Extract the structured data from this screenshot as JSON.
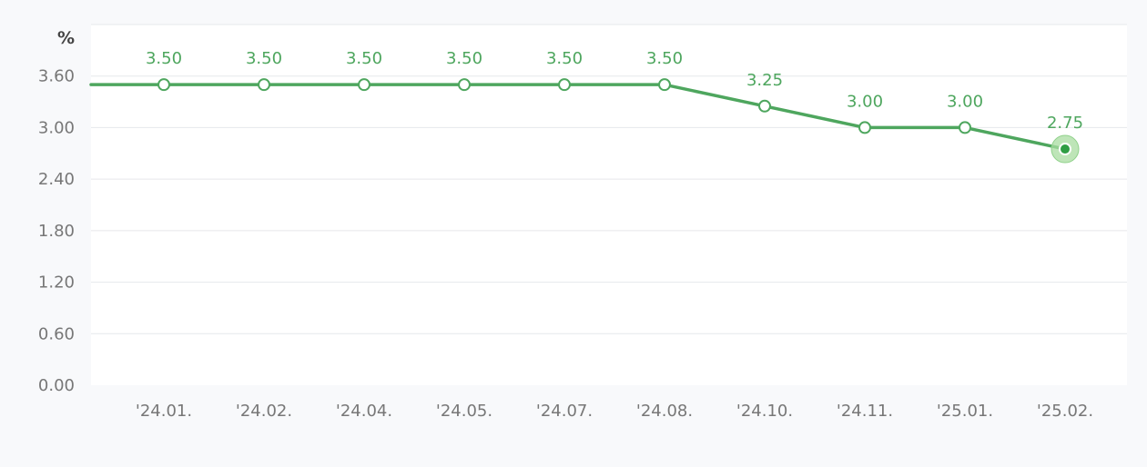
{
  "chart_data": {
    "type": "line",
    "title": "",
    "xlabel": "",
    "ylabel": "%",
    "categories": [
      "'24.01.",
      "'24.02.",
      "'24.04.",
      "'24.05.",
      "'24.07.",
      "'24.08.",
      "'24.10.",
      "'24.11.",
      "'25.01.",
      "'25.02."
    ],
    "series": [
      {
        "values": [
          3.5,
          3.5,
          3.5,
          3.5,
          3.5,
          3.5,
          3.25,
          3.0,
          3.0,
          2.75
        ],
        "labels": [
          "3.50",
          "3.50",
          "3.50",
          "3.50",
          "3.50",
          "3.50",
          "3.25",
          "3.00",
          "3.00",
          "2.75"
        ]
      }
    ],
    "y_ticks": [
      "0.00",
      "0.60",
      "1.20",
      "1.80",
      "2.40",
      "3.00",
      "3.60"
    ],
    "y_tick_values": [
      0,
      0.6,
      1.2,
      1.8,
      2.4,
      3.0,
      3.6
    ],
    "ylim": [
      0,
      4.2
    ],
    "grid": true,
    "line_extends_left": true,
    "highlight_last_point": true
  },
  "colors": {
    "line": "#4ea65e",
    "label": "#4ea65e",
    "grid": "#e6e8eb",
    "plot_bg": "#ffffff",
    "page_bg": "#f8f9fb",
    "highlight_halo": "#a8dca0",
    "highlight_dot": "#2f9e44"
  }
}
